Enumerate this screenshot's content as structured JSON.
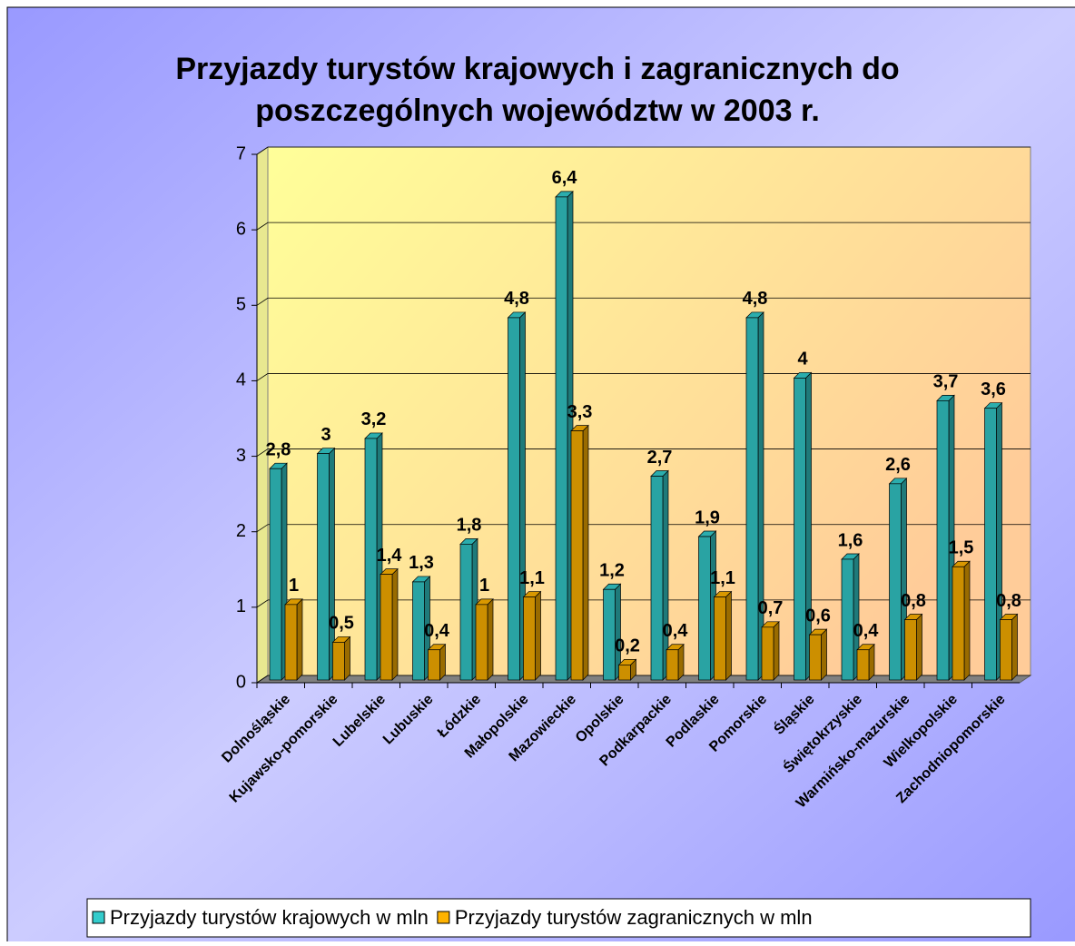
{
  "chart_data": {
    "type": "bar3d",
    "title": [
      "Przyjazdy turystów krajowych i zagranicznych do",
      "poszczególnych województw w 2003 r."
    ],
    "categories": [
      "Dolnośląskie",
      "Kujawsko-pomorskie",
      "Lubelskie",
      "Lubuskie",
      "Łódzkie",
      "Małopolskie",
      "Mazowieckie",
      "Opolskie",
      "Podkarpackie",
      "Podlaskie",
      "Pomorskie",
      "Śląskie",
      "Świętokrzyskie",
      "Warmińsko-mazurskie",
      "Wielkopolskie",
      "Zachodniopomorskie"
    ],
    "series": [
      {
        "name": "Przyjazdy turystów krajowych w mln",
        "color": "#33cccc",
        "values": [
          2.8,
          3,
          3.2,
          1.3,
          1.8,
          4.8,
          6.4,
          1.2,
          2.7,
          1.9,
          4.8,
          4,
          1.6,
          2.6,
          3.7,
          3.6
        ],
        "value_labels": [
          "2,8",
          "3",
          "3,2",
          "1,3",
          "1,8",
          "4,8",
          "6,4",
          "1,2",
          "2,7",
          "1,9",
          "4,8",
          "4",
          "1,6",
          "2,6",
          "3,7",
          "3,6"
        ]
      },
      {
        "name": "Przyjazdy turystów zagranicznych w mln",
        "color": "#ffb300",
        "values": [
          1,
          0.5,
          1.4,
          0.4,
          1,
          1.1,
          3.3,
          0.2,
          0.4,
          1.1,
          0.7,
          0.6,
          0.4,
          0.8,
          1.5,
          0.8
        ],
        "value_labels": [
          "1",
          "0,5",
          "1,4",
          "0,4",
          "1",
          "1,1",
          "3,3",
          "0,2",
          "0,4",
          "1,1",
          "0,7",
          "0,6",
          "0,4",
          "0,8",
          "1,5",
          "0,8"
        ]
      }
    ],
    "ylim": [
      0,
      7
    ],
    "yticks": [
      0,
      1,
      2,
      3,
      4,
      5,
      6,
      7
    ],
    "grid": true,
    "legend": "bottom"
  }
}
